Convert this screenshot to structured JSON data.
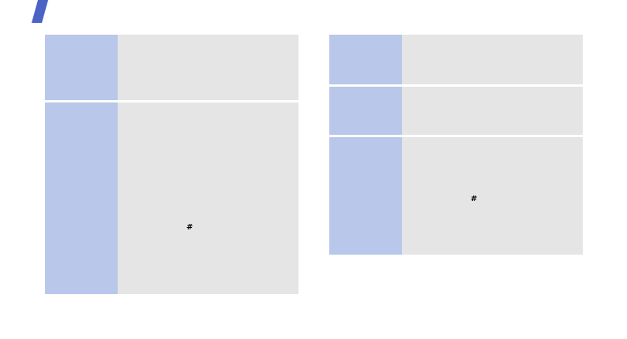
{
  "brand_color": "#4a63c4",
  "label_color": "#b8c7ea",
  "cell_color": "#e5e5e5",
  "left_table": {
    "rows": [
      {
        "symbol": ""
      },
      {
        "symbol": "#"
      }
    ]
  },
  "right_table": {
    "rows": [
      {
        "symbol": ""
      },
      {
        "symbol": ""
      },
      {
        "symbol": "#"
      }
    ]
  }
}
